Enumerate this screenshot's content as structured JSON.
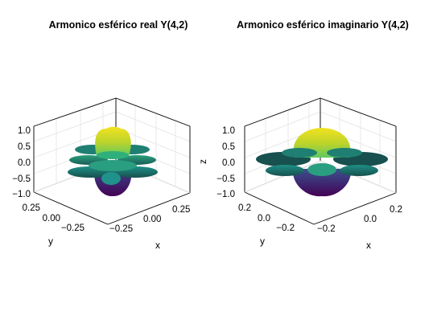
{
  "chart_data": [
    {
      "type": "surface3d",
      "title": "Armonico esférico real Y(4,2)",
      "xlabel": "x",
      "ylabel": "y",
      "zlabel": "",
      "xlim": [
        -0.35,
        0.35
      ],
      "ylim": [
        -0.35,
        0.35
      ],
      "zlim": [
        -1.0,
        1.0
      ],
      "xticks": [
        "−0.25",
        "0.00",
        "0.25"
      ],
      "yticks": [
        "0.25",
        "0.00",
        "−0.25"
      ],
      "zticks": [
        "1.0",
        "0.5",
        "0.0",
        "−0.5",
        "−1.0"
      ],
      "grid": true,
      "colormap": [
        "#440154",
        "#3b528b",
        "#21918c",
        "#5ec962",
        "#fde725"
      ]
    },
    {
      "type": "surface3d",
      "title": "Armonico esférico imaginario Y(4,2)",
      "xlabel": "x",
      "ylabel": "y",
      "zlabel": "z",
      "xlim": [
        -0.3,
        0.3
      ],
      "ylim": [
        -0.3,
        0.3
      ],
      "zlim": [
        -1.0,
        1.0
      ],
      "xticks": [
        "−0.2",
        "0.0",
        "0.2"
      ],
      "yticks": [
        "0.2",
        "0.0",
        "−0.2"
      ],
      "zticks": [
        "1.0",
        "0.5",
        "0.0",
        "−0.5",
        "−1.0"
      ],
      "grid": true,
      "colormap": [
        "#440154",
        "#3b528b",
        "#21918c",
        "#5ec962",
        "#fde725"
      ]
    }
  ]
}
